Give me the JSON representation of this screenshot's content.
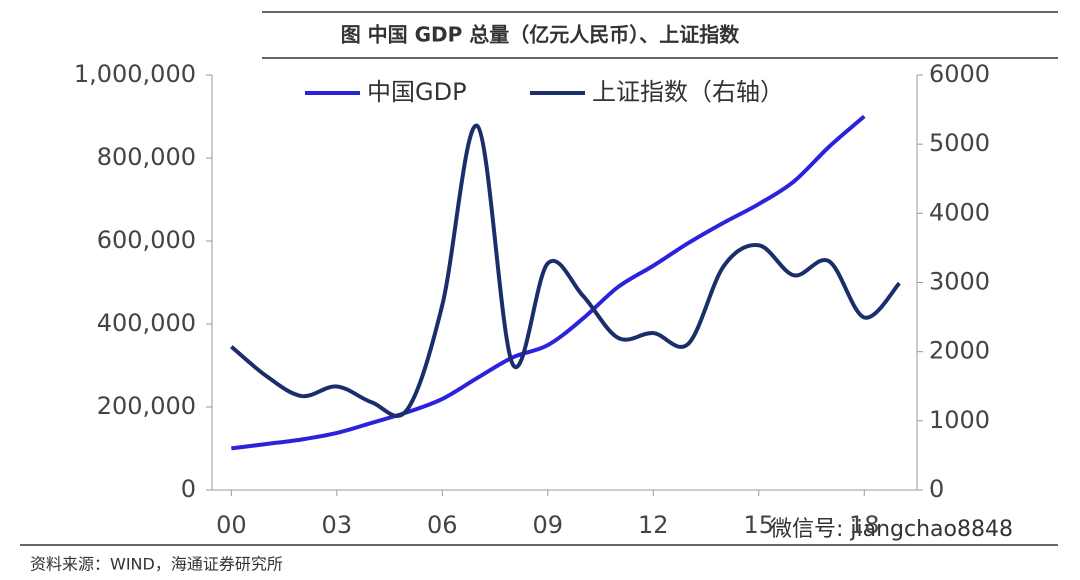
{
  "chart_data": {
    "type": "line",
    "title": "图  中国 GDP 总量（亿元人民币）、上证指数",
    "source": "资料来源：WIND，海通证券研究所",
    "watermark": "微信号: jiangchao8848",
    "x": [
      0,
      1,
      2,
      3,
      4,
      5,
      6,
      7,
      8,
      9,
      10,
      11,
      12,
      13,
      14,
      15,
      16,
      17,
      18,
      19
    ],
    "xlim": [
      -0.55,
      19.5
    ],
    "xticks": [
      {
        "value": 0,
        "label": "00"
      },
      {
        "value": 3,
        "label": "03"
      },
      {
        "value": 6,
        "label": "06"
      },
      {
        "value": 9,
        "label": "09"
      },
      {
        "value": 12,
        "label": "12"
      },
      {
        "value": 15,
        "label": "15"
      },
      {
        "value": 18,
        "label": "18"
      }
    ],
    "ylim": [
      0,
      1000000
    ],
    "yticks": [
      0,
      {
        "value": 200000,
        "label": "200,000"
      },
      {
        "value": 400000,
        "label": "400,000"
      },
      {
        "value": 600000,
        "label": "600,000"
      },
      {
        "value": 800000,
        "label": "800,000"
      },
      {
        "value": 1000000,
        "label": "1,000,000"
      }
    ],
    "y2lim": [
      0,
      6000
    ],
    "y2ticks": [
      0,
      1000,
      2000,
      3000,
      4000,
      5000,
      6000
    ],
    "legend": "top",
    "series": [
      {
        "name": "中国GDP",
        "color": "#2a22dd",
        "values": [
          100280,
          110863,
          121717,
          137422,
          161840,
          187319,
          219439,
          270232,
          319516,
          349081,
          413030,
          489301,
          540367,
          595244,
          643974,
          689052,
          743586,
          827122,
          900309,
          null
        ]
      },
      {
        "name": "上证指数（右轴）",
        "color": "#1c2d6b",
        "axis": "y2",
        "values": [
          2073,
          1646,
          1358,
          1497,
          1266,
          1161,
          2675,
          5262,
          1820,
          3277,
          2808,
          2199,
          2269,
          2116,
          3235,
          3539,
          3104,
          3307,
          2494,
          2990
        ]
      }
    ]
  }
}
